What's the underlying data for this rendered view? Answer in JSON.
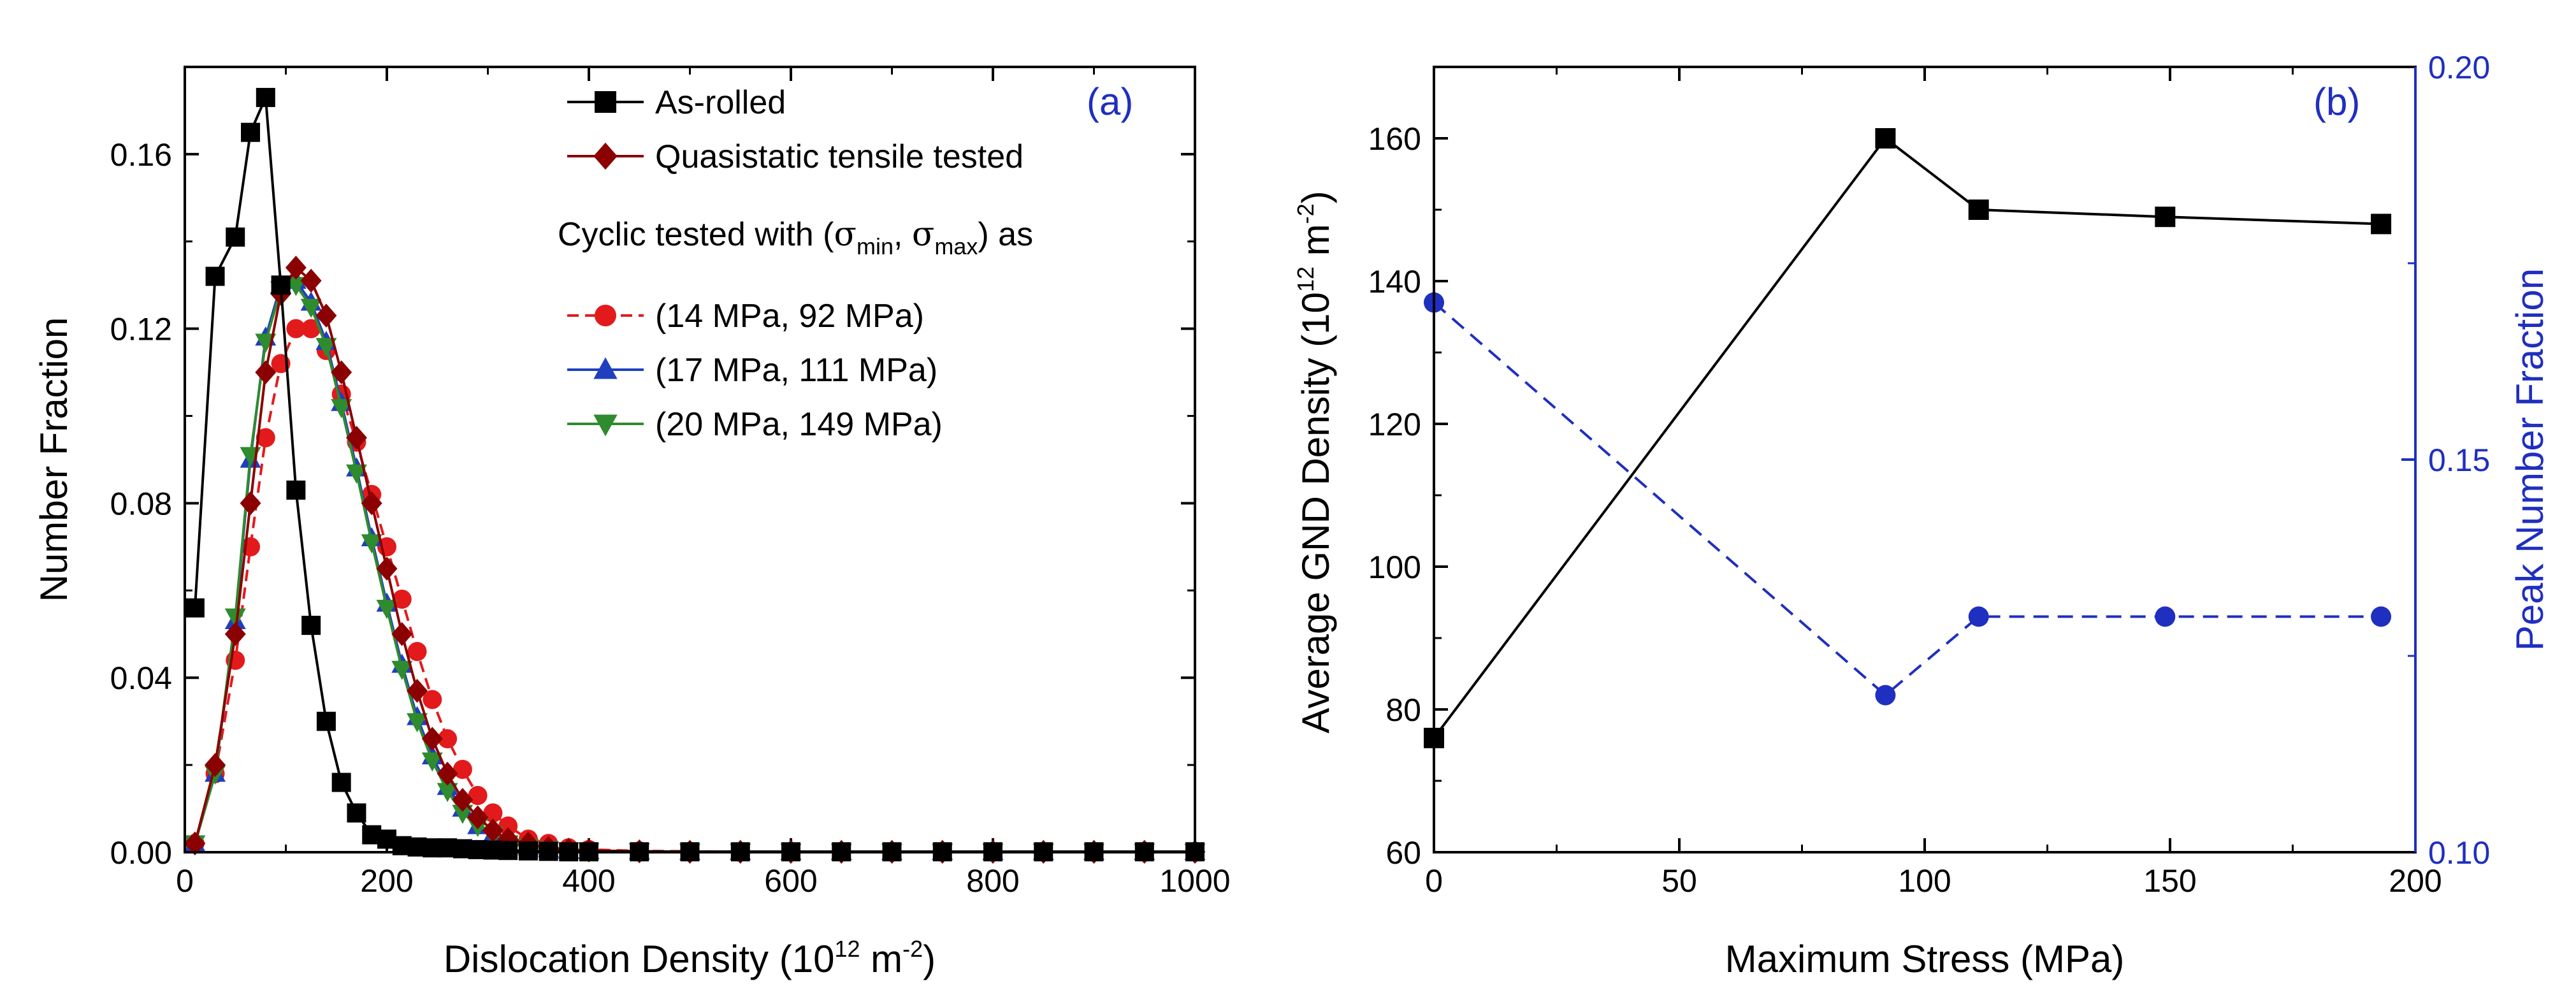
{
  "chart_data": [
    {
      "panel": "(a)",
      "type": "line",
      "xlabel": "Dislocation Density",
      "xlabel_unit": "(10^12 m^-2)",
      "ylabel": "Number Fraction",
      "xlim": [
        0,
        1000
      ],
      "ylim": [
        0,
        0.18
      ],
      "xticks": [
        0,
        200,
        400,
        600,
        800,
        1000
      ],
      "yticks": [
        0.0,
        0.04,
        0.08,
        0.12,
        0.16
      ],
      "ytick_labels": [
        "0.00",
        "0.04",
        "0.08",
        "0.12",
        "0.16"
      ],
      "legend_position": "top-right",
      "legend_group_title": "Cyclic tested with (σmin, σmax) as",
      "series": [
        {
          "name": "As-rolled",
          "color": "#000000",
          "marker": "square",
          "line": "solid",
          "x": [
            10,
            30,
            50,
            65,
            80,
            95,
            110,
            125,
            140,
            155,
            170,
            185,
            200,
            215,
            230,
            245,
            260,
            275,
            290,
            305,
            320,
            340,
            360,
            380,
            400,
            450,
            500,
            550,
            600,
            650,
            700,
            750,
            800,
            850,
            900,
            950,
            1000
          ],
          "y": [
            0.056,
            0.132,
            0.141,
            0.165,
            0.173,
            0.13,
            0.083,
            0.052,
            0.03,
            0.016,
            0.009,
            0.004,
            0.003,
            0.0015,
            0.0012,
            0.001,
            0.001,
            0.0008,
            0.0006,
            0.0005,
            0.0004,
            0.0003,
            0.0002,
            0.0001,
            0.0001,
            0.0001,
            0.0001,
            0.0001,
            0.0001,
            0.0001,
            0.0001,
            0.0001,
            0.0001,
            0.0001,
            0.0001,
            0.0001,
            0.0001
          ]
        },
        {
          "name": "Quasistatic tensile tested",
          "color": "#8b0000",
          "marker": "diamond",
          "line": "solid",
          "x": [
            10,
            30,
            50,
            65,
            80,
            95,
            110,
            125,
            140,
            155,
            170,
            185,
            200,
            215,
            230,
            245,
            260,
            275,
            290,
            305,
            320,
            340,
            360,
            380,
            400,
            450,
            500,
            550,
            600,
            650,
            700,
            750,
            800,
            850,
            900,
            950,
            1000
          ],
          "y": [
            0.002,
            0.02,
            0.05,
            0.08,
            0.11,
            0.128,
            0.134,
            0.131,
            0.123,
            0.11,
            0.095,
            0.08,
            0.065,
            0.05,
            0.037,
            0.026,
            0.018,
            0.012,
            0.008,
            0.005,
            0.003,
            0.002,
            0.001,
            0.0006,
            0.0004,
            0.0002,
            0.0001,
            0.0001,
            0.0001,
            0.0001,
            0.0001,
            0.0001,
            0.0001,
            0.0001,
            0.0001,
            0.0001,
            0.0001
          ]
        },
        {
          "name": "(14 MPa, 92 MPa)",
          "color": "#e31a1c",
          "marker": "circle",
          "line": "dash",
          "x": [
            10,
            30,
            50,
            65,
            80,
            95,
            110,
            125,
            140,
            155,
            170,
            185,
            200,
            215,
            230,
            245,
            260,
            275,
            290,
            305,
            320,
            340,
            360,
            380,
            400,
            450,
            500,
            550,
            600,
            650,
            700,
            750,
            800,
            850,
            900,
            950,
            1000
          ],
          "y": [
            0.002,
            0.018,
            0.044,
            0.07,
            0.095,
            0.112,
            0.12,
            0.12,
            0.115,
            0.105,
            0.094,
            0.082,
            0.07,
            0.058,
            0.046,
            0.035,
            0.026,
            0.019,
            0.013,
            0.009,
            0.006,
            0.003,
            0.002,
            0.001,
            0.0006,
            0.0003,
            0.0002,
            0.0001,
            0.0001,
            0.0001,
            0.0001,
            0.0001,
            0.0001,
            0.0001,
            0.0001,
            0.0001,
            0.0001
          ]
        },
        {
          "name": "(17 MPa, 111 MPa)",
          "color": "#1f3fbf",
          "marker": "triangle-up",
          "line": "solid",
          "x": [
            10,
            30,
            50,
            65,
            80,
            95,
            110,
            125,
            140,
            155,
            170,
            185,
            200,
            215,
            230,
            245,
            260,
            275,
            290,
            305,
            320,
            340,
            360,
            380,
            400,
            450,
            500,
            550,
            600,
            650,
            700,
            750,
            800,
            850,
            900,
            950,
            1000
          ],
          "y": [
            0.002,
            0.018,
            0.053,
            0.09,
            0.118,
            0.13,
            0.131,
            0.126,
            0.117,
            0.103,
            0.088,
            0.072,
            0.057,
            0.043,
            0.031,
            0.022,
            0.015,
            0.01,
            0.006,
            0.004,
            0.002,
            0.0012,
            0.0007,
            0.0004,
            0.0003,
            0.0002,
            0.0001,
            0.0001,
            0.0001,
            0.0001,
            0.0001,
            0.0001,
            0.0001,
            0.0001,
            0.0001,
            0.0001,
            0.0001
          ]
        },
        {
          "name": "(20 MPa, 149 MPa)",
          "color": "#2e8b2e",
          "marker": "triangle-down",
          "line": "solid",
          "x": [
            10,
            30,
            50,
            65,
            80,
            95,
            110,
            125,
            140,
            155,
            170,
            185,
            200,
            215,
            230,
            245,
            260,
            275,
            290,
            305,
            320,
            340,
            360,
            380,
            400,
            450,
            500,
            550,
            600,
            650,
            700,
            750,
            800,
            850,
            900,
            950,
            1000
          ],
          "y": [
            0.002,
            0.018,
            0.054,
            0.091,
            0.117,
            0.129,
            0.13,
            0.125,
            0.116,
            0.102,
            0.087,
            0.071,
            0.056,
            0.042,
            0.03,
            0.021,
            0.014,
            0.009,
            0.006,
            0.004,
            0.002,
            0.0012,
            0.0007,
            0.0004,
            0.0003,
            0.0002,
            0.0001,
            0.0001,
            0.0001,
            0.0001,
            0.0001,
            0.0001,
            0.0001,
            0.0001,
            0.0001,
            0.0001,
            0.0001
          ]
        }
      ]
    },
    {
      "panel": "(b)",
      "type": "line",
      "xlabel": "Maximum Stress (MPa)",
      "ylabel": "Average GND Density",
      "ylabel_unit": "(10^12 m^-2)",
      "y2label": "Peak Number Fraction",
      "xlim": [
        0,
        200
      ],
      "ylim": [
        60,
        170
      ],
      "y2lim": [
        0.1,
        0.2
      ],
      "xticks": [
        0,
        50,
        100,
        150,
        200
      ],
      "yticks": [
        60,
        80,
        100,
        120,
        140,
        160
      ],
      "y2ticks": [
        0.1,
        0.15,
        0.2
      ],
      "y2tick_labels": [
        "0.10",
        "0.15",
        "0.20"
      ],
      "series": [
        {
          "name": "Average GND Density",
          "axis": "left",
          "color": "#000000",
          "marker": "square",
          "line": "solid",
          "x": [
            0,
            92,
            111,
            149,
            193
          ],
          "y": [
            76,
            160,
            150,
            149,
            148
          ]
        },
        {
          "name": "Peak Number Fraction",
          "axis": "right",
          "color": "#1f2fbf",
          "marker": "circle",
          "line": "dash",
          "x": [
            0,
            92,
            111,
            149,
            193
          ],
          "y": [
            0.17,
            0.12,
            0.13,
            0.13,
            0.13
          ]
        }
      ]
    }
  ]
}
